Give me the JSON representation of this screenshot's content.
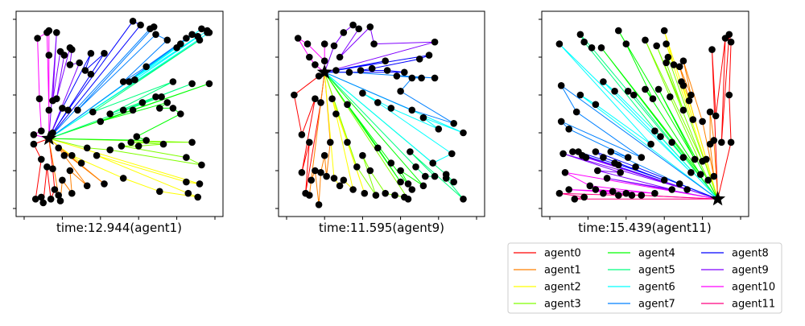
{
  "chart_data": [
    {
      "type": "scatter",
      "title": "time:12.944(agent1)",
      "depot": {
        "x": 0.13,
        "y": 0.37
      },
      "points": [
        [
          0.07,
          0.9
        ],
        [
          0.12,
          0.93
        ],
        [
          0.13,
          0.94
        ],
        [
          0.17,
          0.93
        ],
        [
          0.24,
          0.85
        ],
        [
          0.25,
          0.84
        ],
        [
          0.32,
          0.73
        ],
        [
          0.35,
          0.71
        ],
        [
          0.13,
          0.81
        ],
        [
          0.19,
          0.83
        ],
        [
          0.21,
          0.81
        ],
        [
          0.24,
          0.76
        ],
        [
          0.29,
          0.77
        ],
        [
          0.35,
          0.82
        ],
        [
          0.42,
          0.82
        ],
        [
          0.52,
          0.67
        ],
        [
          0.55,
          0.67
        ],
        [
          0.58,
          0.68
        ],
        [
          0.64,
          0.75
        ],
        [
          0.75,
          0.89
        ],
        [
          0.8,
          0.85
        ],
        [
          0.82,
          0.87
        ],
        [
          0.85,
          0.9
        ],
        [
          0.91,
          0.91
        ],
        [
          0.92,
          0.89
        ],
        [
          0.88,
          0.92
        ],
        [
          0.96,
          0.93
        ],
        [
          0.93,
          0.95
        ],
        [
          0.96,
          0.94
        ],
        [
          0.97,
          0.93
        ],
        [
          0.78,
          0.67
        ],
        [
          0.88,
          0.66
        ],
        [
          0.97,
          0.66
        ],
        [
          0.69,
          0.92
        ],
        [
          0.68,
          0.96
        ],
        [
          0.66,
          0.95
        ],
        [
          0.61,
          0.97
        ],
        [
          0.57,
          0.99
        ],
        [
          0.08,
          0.58
        ],
        [
          0.13,
          0.52
        ],
        [
          0.15,
          0.57
        ],
        [
          0.17,
          0.58
        ],
        [
          0.2,
          0.53
        ],
        [
          0.23,
          0.52
        ],
        [
          0.28,
          0.52
        ],
        [
          0.36,
          0.51
        ],
        [
          0.4,
          0.46
        ],
        [
          0.45,
          0.5
        ],
        [
          0.52,
          0.52
        ],
        [
          0.57,
          0.52
        ],
        [
          0.62,
          0.56
        ],
        [
          0.69,
          0.59
        ],
        [
          0.72,
          0.59
        ],
        [
          0.75,
          0.56
        ],
        [
          0.78,
          0.53
        ],
        [
          0.71,
          0.53
        ],
        [
          0.82,
          0.5
        ],
        [
          0.05,
          0.39
        ],
        [
          0.05,
          0.34
        ],
        [
          0.09,
          0.41
        ],
        [
          0.15,
          0.4
        ],
        [
          0.18,
          0.32
        ],
        [
          0.21,
          0.28
        ],
        [
          0.25,
          0.28
        ],
        [
          0.33,
          0.32
        ],
        [
          0.38,
          0.28
        ],
        [
          0.45,
          0.31
        ],
        [
          0.51,
          0.33
        ],
        [
          0.56,
          0.35
        ],
        [
          0.59,
          0.38
        ],
        [
          0.6,
          0.33
        ],
        [
          0.64,
          0.36
        ],
        [
          0.73,
          0.34
        ],
        [
          0.88,
          0.35
        ],
        [
          0.85,
          0.27
        ],
        [
          0.93,
          0.23
        ],
        [
          0.09,
          0.26
        ],
        [
          0.12,
          0.22
        ],
        [
          0.15,
          0.21
        ],
        [
          0.16,
          0.1
        ],
        [
          0.18,
          0.07
        ],
        [
          0.25,
          0.08
        ],
        [
          0.09,
          0.06
        ],
        [
          0.06,
          0.05
        ],
        [
          0.1,
          0.03
        ],
        [
          0.14,
          0.05
        ],
        [
          0.19,
          0.04
        ],
        [
          0.33,
          0.12
        ],
        [
          0.42,
          0.13
        ],
        [
          0.52,
          0.16
        ],
        [
          0.71,
          0.09
        ],
        [
          0.85,
          0.14
        ],
        [
          0.86,
          0.08
        ],
        [
          0.91,
          0.06
        ],
        [
          0.92,
          0.13
        ],
        [
          0.3,
          0.24
        ],
        [
          0.24,
          0.2
        ],
        [
          0.2,
          0.15
        ]
      ]
    },
    {
      "type": "scatter",
      "title": "time:11.595(agent9)",
      "depot": {
        "x": 0.2,
        "y": 0.72
      },
      "points": [
        [
          0.06,
          0.9
        ],
        [
          0.11,
          0.87
        ],
        [
          0.2,
          0.87
        ],
        [
          0.25,
          0.86
        ],
        [
          0.28,
          0.8
        ],
        [
          0.3,
          0.93
        ],
        [
          0.35,
          0.97
        ],
        [
          0.38,
          0.95
        ],
        [
          0.44,
          0.96
        ],
        [
          0.46,
          0.87
        ],
        [
          0.52,
          0.78
        ],
        [
          0.58,
          0.7
        ],
        [
          0.7,
          0.79
        ],
        [
          0.75,
          0.81
        ],
        [
          0.78,
          0.88
        ],
        [
          0.12,
          0.8
        ],
        [
          0.15,
          0.76
        ],
        [
          0.17,
          0.7
        ],
        [
          0.2,
          0.78
        ],
        [
          0.26,
          0.73
        ],
        [
          0.33,
          0.72
        ],
        [
          0.39,
          0.73
        ],
        [
          0.45,
          0.74
        ],
        [
          0.53,
          0.73
        ],
        [
          0.62,
          0.72
        ],
        [
          0.66,
          0.69
        ],
        [
          0.71,
          0.69
        ],
        [
          0.78,
          0.69
        ],
        [
          0.04,
          0.6
        ],
        [
          0.15,
          0.58
        ],
        [
          0.18,
          0.56
        ],
        [
          0.24,
          0.58
        ],
        [
          0.26,
          0.5
        ],
        [
          0.32,
          0.55
        ],
        [
          0.4,
          0.61
        ],
        [
          0.48,
          0.56
        ],
        [
          0.55,
          0.53
        ],
        [
          0.6,
          0.62
        ],
        [
          0.66,
          0.52
        ],
        [
          0.72,
          0.48
        ],
        [
          0.8,
          0.42
        ],
        [
          0.88,
          0.45
        ],
        [
          0.93,
          0.4
        ],
        [
          0.08,
          0.39
        ],
        [
          0.12,
          0.35
        ],
        [
          0.23,
          0.35
        ],
        [
          0.2,
          0.28
        ],
        [
          0.32,
          0.35
        ],
        [
          0.4,
          0.28
        ],
        [
          0.48,
          0.32
        ],
        [
          0.55,
          0.24
        ],
        [
          0.6,
          0.2
        ],
        [
          0.65,
          0.3
        ],
        [
          0.68,
          0.22
        ],
        [
          0.73,
          0.17
        ],
        [
          0.77,
          0.24
        ],
        [
          0.84,
          0.18
        ],
        [
          0.87,
          0.29
        ],
        [
          0.08,
          0.19
        ],
        [
          0.13,
          0.15
        ],
        [
          0.15,
          0.2
        ],
        [
          0.18,
          0.19
        ],
        [
          0.21,
          0.17
        ],
        [
          0.25,
          0.16
        ],
        [
          0.1,
          0.08
        ],
        [
          0.12,
          0.07
        ],
        [
          0.17,
          0.02
        ],
        [
          0.28,
          0.12
        ],
        [
          0.35,
          0.1
        ],
        [
          0.41,
          0.08
        ],
        [
          0.47,
          0.07
        ],
        [
          0.52,
          0.08
        ],
        [
          0.57,
          0.07
        ],
        [
          0.62,
          0.06
        ],
        [
          0.64,
          0.05
        ],
        [
          0.66,
          0.1
        ],
        [
          0.64,
          0.13
        ],
        [
          0.6,
          0.14
        ],
        [
          0.72,
          0.12
        ],
        [
          0.78,
          0.17
        ],
        [
          0.84,
          0.16
        ],
        [
          0.93,
          0.05
        ],
        [
          0.88,
          0.14
        ],
        [
          0.3,
          0.15
        ],
        [
          0.37,
          0.22
        ],
        [
          0.44,
          0.2
        ]
      ]
    },
    {
      "type": "scatter",
      "title": "time:15.439(agent11)",
      "depot": {
        "x": 0.88,
        "y": 0.05
      },
      "points": [
        [
          0.05,
          0.87
        ],
        [
          0.16,
          0.92
        ],
        [
          0.18,
          0.88
        ],
        [
          0.22,
          0.85
        ],
        [
          0.27,
          0.85
        ],
        [
          0.36,
          0.94
        ],
        [
          0.4,
          0.87
        ],
        [
          0.5,
          0.89
        ],
        [
          0.56,
          0.86
        ],
        [
          0.6,
          0.94
        ],
        [
          0.61,
          0.87
        ],
        [
          0.62,
          0.8
        ],
        [
          0.61,
          0.77
        ],
        [
          0.65,
          0.76
        ],
        [
          0.68,
          0.75
        ],
        [
          0.7,
          0.78
        ],
        [
          0.69,
          0.67
        ],
        [
          0.7,
          0.65
        ],
        [
          0.74,
          0.6
        ],
        [
          0.73,
          0.57
        ],
        [
          0.85,
          0.84
        ],
        [
          0.92,
          0.9
        ],
        [
          0.94,
          0.92
        ],
        [
          0.95,
          0.88
        ],
        [
          0.94,
          0.6
        ],
        [
          0.06,
          0.65
        ],
        [
          0.16,
          0.6
        ],
        [
          0.24,
          0.55
        ],
        [
          0.28,
          0.67
        ],
        [
          0.34,
          0.62
        ],
        [
          0.41,
          0.62
        ],
        [
          0.44,
          0.6
        ],
        [
          0.5,
          0.63
        ],
        [
          0.54,
          0.58
        ],
        [
          0.57,
          0.63
        ],
        [
          0.63,
          0.59
        ],
        [
          0.7,
          0.52
        ],
        [
          0.75,
          0.47
        ],
        [
          0.8,
          0.46
        ],
        [
          0.84,
          0.51
        ],
        [
          0.87,
          0.49
        ],
        [
          0.06,
          0.46
        ],
        [
          0.1,
          0.42
        ],
        [
          0.14,
          0.51
        ],
        [
          0.07,
          0.29
        ],
        [
          0.12,
          0.3
        ],
        [
          0.15,
          0.3
        ],
        [
          0.17,
          0.28
        ],
        [
          0.19,
          0.27
        ],
        [
          0.24,
          0.3
        ],
        [
          0.25,
          0.2
        ],
        [
          0.28,
          0.27
        ],
        [
          0.32,
          0.3
        ],
        [
          0.34,
          0.24
        ],
        [
          0.36,
          0.23
        ],
        [
          0.41,
          0.27
        ],
        [
          0.45,
          0.22
        ],
        [
          0.48,
          0.27
        ],
        [
          0.53,
          0.34
        ],
        [
          0.55,
          0.41
        ],
        [
          0.58,
          0.38
        ],
        [
          0.64,
          0.35
        ],
        [
          0.7,
          0.27
        ],
        [
          0.76,
          0.26
        ],
        [
          0.8,
          0.25
        ],
        [
          0.84,
          0.34
        ],
        [
          0.86,
          0.36
        ],
        [
          0.9,
          0.35
        ],
        [
          0.95,
          0.35
        ],
        [
          0.08,
          0.19
        ],
        [
          0.05,
          0.08
        ],
        [
          0.1,
          0.1
        ],
        [
          0.13,
          0.05
        ],
        [
          0.18,
          0.06
        ],
        [
          0.24,
          0.1
        ],
        [
          0.28,
          0.08
        ],
        [
          0.33,
          0.09
        ],
        [
          0.36,
          0.07
        ],
        [
          0.4,
          0.08
        ],
        [
          0.43,
          0.07
        ],
        [
          0.48,
          0.07
        ],
        [
          0.55,
          0.08
        ],
        [
          0.6,
          0.15
        ],
        [
          0.64,
          0.1
        ],
        [
          0.68,
          0.13
        ],
        [
          0.72,
          0.1
        ],
        [
          0.74,
          0.19
        ],
        [
          0.79,
          0.18
        ],
        [
          0.82,
          0.26
        ],
        [
          0.83,
          0.15
        ],
        [
          0.86,
          0.17
        ],
        [
          0.21,
          0.12
        ],
        [
          0.3,
          0.16
        ],
        [
          0.37,
          0.19
        ]
      ]
    }
  ],
  "legend": {
    "placement": "bottom-right",
    "columns": 3,
    "entries": [
      {
        "name": "agent0",
        "color": "#ff0000"
      },
      {
        "name": "agent1",
        "color": "#ff8000"
      },
      {
        "name": "agent2",
        "color": "#ffff00"
      },
      {
        "name": "agent3",
        "color": "#80ff00"
      },
      {
        "name": "agent4",
        "color": "#00ff00"
      },
      {
        "name": "agent5",
        "color": "#00ff80"
      },
      {
        "name": "agent6",
        "color": "#00ffff"
      },
      {
        "name": "agent7",
        "color": "#0080ff"
      },
      {
        "name": "agent8",
        "color": "#0000ff"
      },
      {
        "name": "agent9",
        "color": "#8000ff"
      },
      {
        "name": "agent10",
        "color": "#ff00ff"
      },
      {
        "name": "agent11",
        "color": "#ff0080"
      }
    ]
  },
  "ticks": {
    "x": [
      0,
      0.2,
      0.4,
      0.6,
      0.8,
      1.0
    ],
    "y": [
      0,
      0.2,
      0.4,
      0.6,
      0.8,
      1.0
    ]
  }
}
